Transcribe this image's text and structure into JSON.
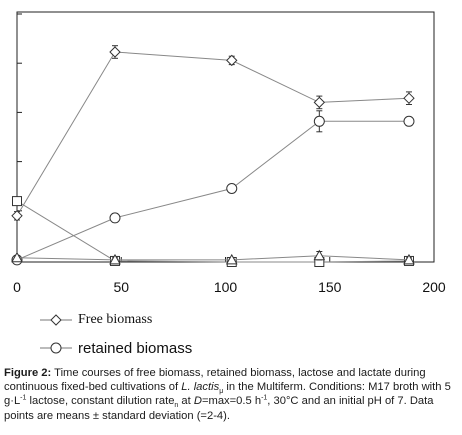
{
  "chart_data": {
    "type": "line",
    "x_ticks": [
      "0",
      "50",
      "100",
      "150",
      "200"
    ],
    "xlim": [
      0,
      200
    ],
    "ylim": [
      0,
      10
    ],
    "y_tick_count": 5,
    "grid": false,
    "series": [
      {
        "name": "Free biomass",
        "marker": "diamond",
        "x": [
          0,
          47,
          103,
          145,
          188
        ],
        "y": [
          2.2,
          10.0,
          9.6,
          7.6,
          7.8
        ],
        "err": [
          0.2,
          0.3,
          0.2,
          0.3,
          0.3
        ]
      },
      {
        "name": "retained biomass",
        "marker": "circle",
        "x": [
          0,
          47,
          103,
          145,
          188
        ],
        "y": [
          0.1,
          2.1,
          3.5,
          6.7,
          6.7
        ],
        "err": [
          0.1,
          0.2,
          0.1,
          0.5,
          0.2
        ]
      },
      {
        "marker": "square",
        "x": [
          0,
          47,
          103,
          145,
          188
        ],
        "y": [
          2.9,
          0.05,
          0.0,
          0.0,
          0.05
        ],
        "err": [
          0.1,
          0.1,
          0.1,
          0.1,
          0.1
        ]
      },
      {
        "marker": "triangle",
        "x": [
          0,
          47,
          103,
          145,
          188
        ],
        "y": [
          0.2,
          0.1,
          0.1,
          0.3,
          0.1
        ],
        "err": [
          0.1,
          0.1,
          0.1,
          0.2,
          0.1
        ]
      }
    ]
  },
  "legend": {
    "free_label": "Free biomass",
    "retained_label": "retained biomass"
  },
  "caption": {
    "fig_label": "Figure 2:",
    "text_1": " Time courses of free biomass, retained biomass, lactose and lactate during continuous fixed-bed cultivations of ",
    "organism": "L. lactis",
    "sub_mu": "μ",
    "text_2": " in the Multiferm. Conditions: M17 broth with 5 g·L",
    "sup_1": "-1",
    "text_3": " lactose, constant dilution rate",
    "sub_n": "n",
    "text_4": " at ",
    "d_symbol": "D",
    "text_5": "=max=0.5 h",
    "sup_2": "-1",
    "text_6": ", 30°C and an initial pH of 7. Data points are means ± standard deviation (=2-4)."
  }
}
